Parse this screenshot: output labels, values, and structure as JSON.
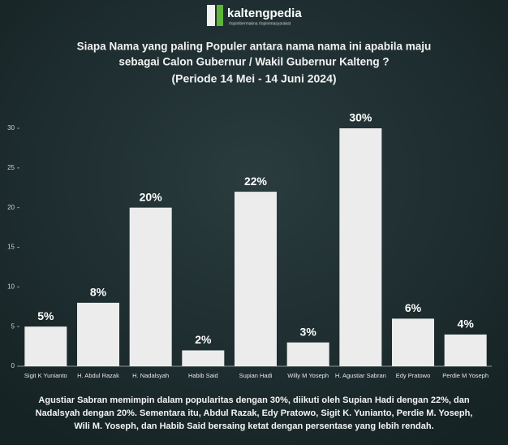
{
  "header": {
    "brand": "kaltengpedia",
    "tags": "#opinibermakna   #opinimasyarakat"
  },
  "chart_data": {
    "type": "bar",
    "title": [
      "Siapa Nama yang paling Populer antara nama nama ini apabila maju",
      "sebagai Calon Gubernur / Wakil Gubernur Kalteng ?"
    ],
    "subtitle": "(Periode 14 Mei  - 14 Juni 2024)",
    "categories": [
      "Sigit K Yunianto",
      "H. Abdul Razak",
      "H. Nadalsyah",
      "Habib Said",
      "Supian Hadi",
      "Willy M Yoseph",
      "H. Agustiar Sabran",
      "Edy Pratowo",
      "Perdie M Yoseph"
    ],
    "values": [
      5,
      8,
      20,
      2,
      22,
      3,
      30,
      6,
      4
    ],
    "value_labels": [
      "5%",
      "8%",
      "20%",
      "2%",
      "22%",
      "3%",
      "30%",
      "6%",
      "4%"
    ],
    "color": "#ececec",
    "ylim": [
      0,
      30
    ],
    "yticks": [
      0,
      5,
      10,
      15,
      20,
      25,
      30
    ],
    "grid": false,
    "caption": [
      "Agustiar Sabran memimpin dalam popularitas dengan 30%, diikuti oleh Supian Hadi dengan 22%, dan",
      "Nadalsyah dengan 20%. Sementara itu, Abdul Razak, Edy Pratowo, Sigit K. Yunianto, Perdie M. Yoseph,",
      "Wili M. Yoseph, dan Habib Said bersaing ketat dengan persentase yang lebih rendah."
    ]
  }
}
